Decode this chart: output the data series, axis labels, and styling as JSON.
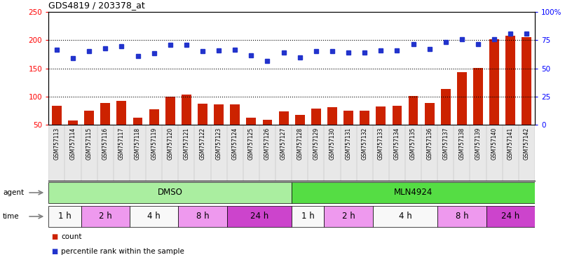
{
  "title": "GDS4819 / 203378_at",
  "samples": [
    "GSM757113",
    "GSM757114",
    "GSM757115",
    "GSM757116",
    "GSM757117",
    "GSM757118",
    "GSM757119",
    "GSM757120",
    "GSM757121",
    "GSM757122",
    "GSM757123",
    "GSM757124",
    "GSM757125",
    "GSM757126",
    "GSM757127",
    "GSM757128",
    "GSM757129",
    "GSM757130",
    "GSM757131",
    "GSM757132",
    "GSM757133",
    "GSM757134",
    "GSM757135",
    "GSM757136",
    "GSM757137",
    "GSM757138",
    "GSM757139",
    "GSM757140",
    "GSM757141",
    "GSM757142"
  ],
  "counts": [
    83,
    58,
    75,
    88,
    92,
    63,
    77,
    100,
    104,
    87,
    86,
    86,
    62,
    59,
    73,
    67,
    79,
    81,
    75,
    75,
    82,
    83,
    101,
    89,
    113,
    143,
    151,
    202,
    208,
    205
  ],
  "percentiles": [
    183,
    168,
    181,
    186,
    189,
    172,
    177,
    191,
    192,
    181,
    182,
    183,
    173,
    163,
    178,
    169,
    180,
    181,
    178,
    178,
    182,
    182,
    193,
    184,
    197,
    201,
    193,
    202,
    211,
    211
  ],
  "bar_color": "#cc2200",
  "dot_color": "#2233cc",
  "left_ylim": [
    50,
    250
  ],
  "left_yticks": [
    50,
    100,
    150,
    200,
    250
  ],
  "right_ylim": [
    0,
    100
  ],
  "right_yticks": [
    0,
    25,
    50,
    75,
    100
  ],
  "right_yticklabels": [
    "0",
    "25",
    "50",
    "75",
    "100%"
  ],
  "hlines": [
    100,
    150,
    200
  ],
  "agent_groups": [
    {
      "label": "DMSO",
      "start": 0,
      "end": 14,
      "color": "#aaeea0"
    },
    {
      "label": "MLN4924",
      "start": 15,
      "end": 29,
      "color": "#55dd44"
    }
  ],
  "time_groups": [
    {
      "label": "1 h",
      "start": 0,
      "end": 1,
      "color": "#f8f8f8"
    },
    {
      "label": "2 h",
      "start": 2,
      "end": 4,
      "color": "#ee99ee"
    },
    {
      "label": "4 h",
      "start": 5,
      "end": 7,
      "color": "#f8f8f8"
    },
    {
      "label": "8 h",
      "start": 8,
      "end": 10,
      "color": "#ee99ee"
    },
    {
      "label": "24 h",
      "start": 11,
      "end": 14,
      "color": "#cc44cc"
    },
    {
      "label": "1 h",
      "start": 15,
      "end": 16,
      "color": "#f8f8f8"
    },
    {
      "label": "2 h",
      "start": 17,
      "end": 19,
      "color": "#ee99ee"
    },
    {
      "label": "4 h",
      "start": 20,
      "end": 23,
      "color": "#f8f8f8"
    },
    {
      "label": "8 h",
      "start": 24,
      "end": 26,
      "color": "#ee99ee"
    },
    {
      "label": "24 h",
      "start": 27,
      "end": 29,
      "color": "#cc44cc"
    }
  ],
  "legend_items": [
    {
      "label": "count",
      "color": "#cc2200"
    },
    {
      "label": "percentile rank within the sample",
      "color": "#2233cc"
    }
  ],
  "bg_color": "#e8e8e8"
}
